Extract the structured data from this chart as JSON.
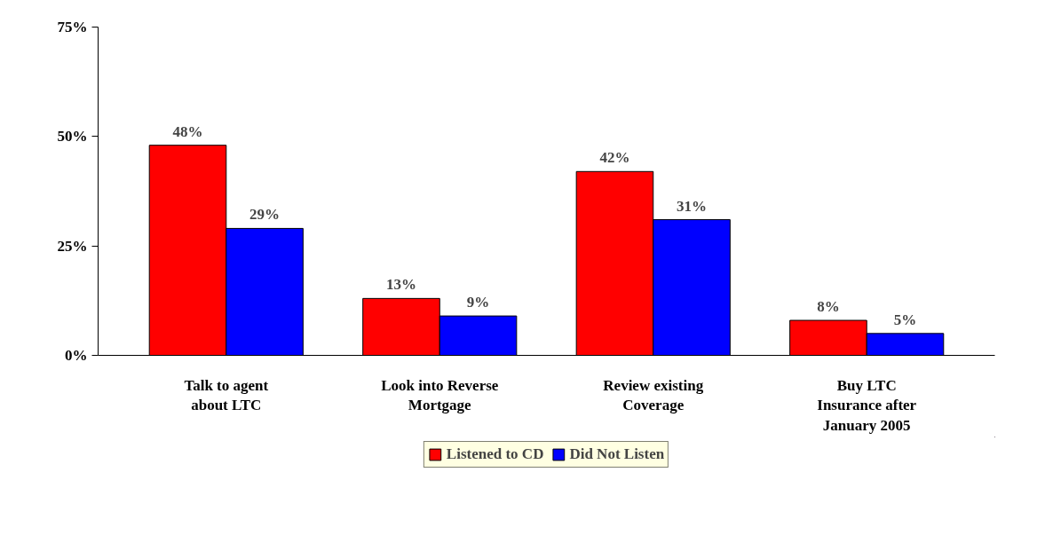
{
  "chart_data": {
    "type": "bar",
    "categories": [
      "Talk to agent\nabout LTC",
      "Look into Reverse\nMortgage",
      "Review existing\nCoverage",
      "Buy LTC\nInsurance after\nJanuary 2005"
    ],
    "series": [
      {
        "name": "Listened to CD",
        "color": "#ff0000",
        "values": [
          48,
          13,
          42,
          8
        ],
        "value_labels": [
          "48%",
          "13%",
          "42%",
          "8%"
        ]
      },
      {
        "name": "Did Not Listen",
        "color": "#0000ff",
        "values": [
          29,
          9,
          31,
          5
        ],
        "value_labels": [
          "29%",
          "9%",
          "31%",
          "5%"
        ]
      }
    ],
    "ylim": [
      0,
      75
    ],
    "yticks": [
      {
        "value": 0,
        "label": "0%"
      },
      {
        "value": 25,
        "label": "25%"
      },
      {
        "value": 50,
        "label": "50%"
      },
      {
        "value": 75,
        "label": "75%"
      }
    ],
    "legend": "bottom"
  }
}
